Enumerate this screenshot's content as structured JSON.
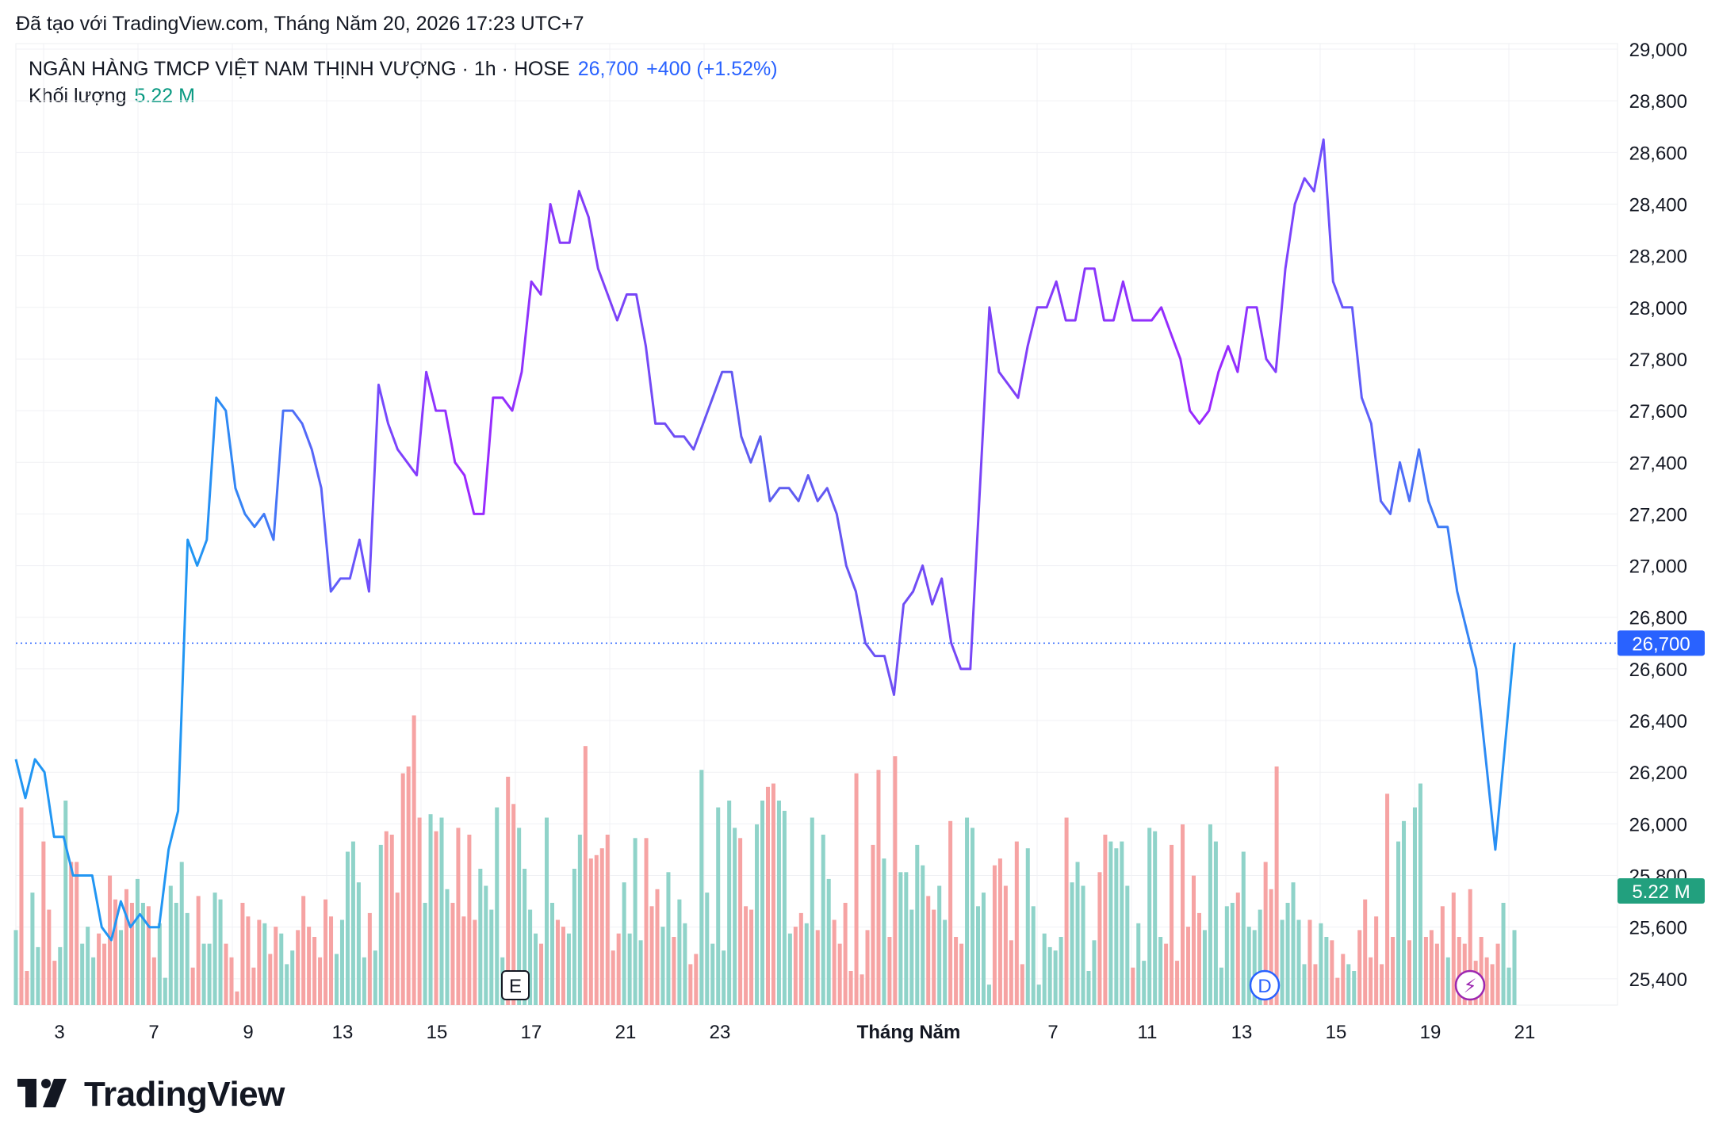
{
  "header": {
    "created_note": "Đã tạo với TradingView.com, Tháng Năm 20, 2026 17:23 UTC+7"
  },
  "legend": {
    "symbol": "NGÂN HÀNG TMCP VIỆT NAM THỊNH VƯỢNG · 1h · HOSE",
    "price": "26,700",
    "change": "+400 (+1.52%)",
    "volume_label": "Khối lượng",
    "volume_value": "5.22 M"
  },
  "price_badge": "26,700",
  "volume_badge": "5.22 M",
  "event_markers": [
    {
      "label": "E",
      "x_index": 90
    },
    {
      "label": "D",
      "x_index": 225
    },
    {
      "label": "⚡",
      "x_index": 262
    }
  ],
  "brand": {
    "name": "TradingView"
  },
  "colors": {
    "line_start": "#2196f3",
    "line_mid": "#9c27ff",
    "volume_up": "#8fd3c9",
    "volume_down": "#f6a3a3",
    "accent": "#2962ff",
    "volume_badge": "#22a07e"
  },
  "chart_data": {
    "type": "line",
    "y_axis_ticks": [
      "29,000",
      "28,800",
      "28,600",
      "28,400",
      "28,200",
      "28,000",
      "27,800",
      "27,600",
      "27,400",
      "27,200",
      "27,000",
      "26,800",
      "26,600",
      "26,400",
      "26,200",
      "26,000",
      "25,800",
      "25,600",
      "25,400"
    ],
    "ylim": [
      25200,
      29000
    ],
    "x_axis_ticks": [
      {
        "label": "3",
        "i": 5
      },
      {
        "label": "7",
        "i": 22
      },
      {
        "label": "9",
        "i": 39
      },
      {
        "label": "13",
        "i": 56
      },
      {
        "label": "15",
        "i": 73
      },
      {
        "label": "17",
        "i": 90
      },
      {
        "label": "21",
        "i": 107
      },
      {
        "label": "23",
        "i": 124
      },
      {
        "label": "Tháng Năm",
        "i": 158,
        "bold": true
      },
      {
        "label": "7",
        "i": 184
      },
      {
        "label": "11",
        "i": 201
      },
      {
        "label": "13",
        "i": 218
      },
      {
        "label": "15",
        "i": 235
      },
      {
        "label": "19",
        "i": 252
      },
      {
        "label": "21",
        "i": 269
      }
    ],
    "last_price": 26700,
    "series": [
      {
        "values": [
          26250,
          26100,
          26250,
          26200,
          25950,
          25950,
          25800,
          25800,
          25800,
          25600,
          25550,
          25700,
          25600,
          25650,
          25600,
          25600,
          25900,
          26050,
          27100,
          27000,
          27100,
          27650,
          27600,
          27300,
          27200,
          27150,
          27200,
          27100,
          27600,
          27600,
          27550,
          27450,
          27300,
          26900,
          26950,
          26950,
          27100,
          26900,
          27700,
          27550,
          27450,
          27400,
          27350,
          27750,
          27600,
          27600,
          27400,
          27350,
          27200,
          27200,
          27650,
          27650,
          27600,
          27750,
          28100,
          28050,
          28400,
          28250,
          28250,
          28450,
          28350,
          28150,
          28050,
          27950,
          28050,
          28050,
          27850,
          27550,
          27550,
          27500,
          27500,
          27450,
          27550,
          27650,
          27750,
          27750,
          27500,
          27400,
          27500,
          27250,
          27300,
          27300,
          27250,
          27350,
          27250,
          27300,
          27200,
          27000,
          26900,
          26700,
          26650,
          26650,
          26500,
          26850,
          26900,
          27000,
          26850,
          26950,
          26700,
          26600,
          26600,
          27300,
          28000,
          27750,
          27700,
          27650,
          27850,
          28000,
          28000,
          28100,
          27950,
          27950,
          28150,
          28150,
          27950,
          27950,
          28100,
          27950,
          27950,
          27950,
          28000,
          27900,
          27800,
          27600,
          27550,
          27600,
          27750,
          27850,
          27750,
          28000,
          28000,
          27800,
          27750,
          28150,
          28400,
          28500,
          28450,
          28650,
          28100,
          28000,
          28000,
          27650,
          27550,
          27250,
          27200,
          27400,
          27250,
          27450,
          27250,
          27150,
          27150,
          26900,
          26750,
          26600,
          26250,
          25900,
          26300,
          26700
        ]
      },
      {
        "name": "Khối lượng",
        "values": [
          22,
          58,
          10,
          33,
          17,
          48,
          28,
          13,
          17,
          60,
          42,
          42,
          18,
          23,
          14,
          21,
          18,
          38,
          31,
          22,
          34,
          30,
          37,
          30,
          29,
          14,
          24,
          8,
          35,
          30,
          42,
          27,
          11,
          32,
          18,
          18,
          33,
          31,
          18,
          14,
          4,
          30,
          26,
          11,
          25,
          24,
          15,
          23,
          21,
          12,
          16,
          22,
          32,
          23,
          20,
          14,
          31,
          26,
          15,
          25,
          45,
          48,
          36,
          14,
          27,
          16,
          47,
          51,
          50,
          33,
          68,
          70,
          85,
          55,
          30,
          56,
          51,
          55,
          34,
          30,
          52,
          26,
          50,
          25,
          40,
          35,
          28,
          58,
          14,
          67,
          59,
          52,
          40,
          28,
          21,
          18,
          55,
          30,
          25,
          23,
          21,
          40,
          50,
          76,
          43,
          44,
          46,
          50,
          16,
          21,
          36,
          21,
          49,
          19,
          49,
          29,
          34,
          23,
          39,
          20,
          31,
          24,
          12,
          15,
          69,
          33,
          18,
          58,
          16,
          60,
          52,
          49,
          29,
          28,
          53,
          60,
          64,
          65,
          60,
          57,
          21,
          23,
          27,
          24,
          55,
          22,
          50,
          37,
          25,
          18,
          30,
          10,
          68,
          9,
          22,
          47,
          69,
          43,
          20,
          73,
          39,
          39,
          28,
          47,
          41,
          32,
          28,
          35,
          25,
          54,
          20,
          18,
          55,
          52,
          29,
          33,
          6,
          41,
          43,
          35,
          19,
          48,
          12,
          46,
          29,
          6,
          21,
          17,
          16,
          20,
          55,
          36,
          42,
          35,
          10,
          19,
          39,
          50,
          48,
          46,
          48,
          35,
          11,
          24,
          13,
          52,
          51,
          20,
          18,
          47,
          13,
          53,
          23,
          38,
          27,
          22,
          53,
          48,
          11,
          29,
          30,
          33,
          45,
          23,
          22,
          28,
          42,
          34,
          70,
          25,
          30,
          36,
          25,
          12,
          25,
          12,
          24,
          20,
          19,
          8,
          15,
          12,
          10,
          22,
          31,
          14,
          26,
          12,
          62,
          20,
          48,
          54,
          19,
          58,
          65,
          20,
          22,
          18,
          29,
          14,
          33,
          20,
          18,
          34,
          13,
          20,
          14,
          12,
          18,
          30,
          11,
          22
        ]
      }
    ]
  }
}
